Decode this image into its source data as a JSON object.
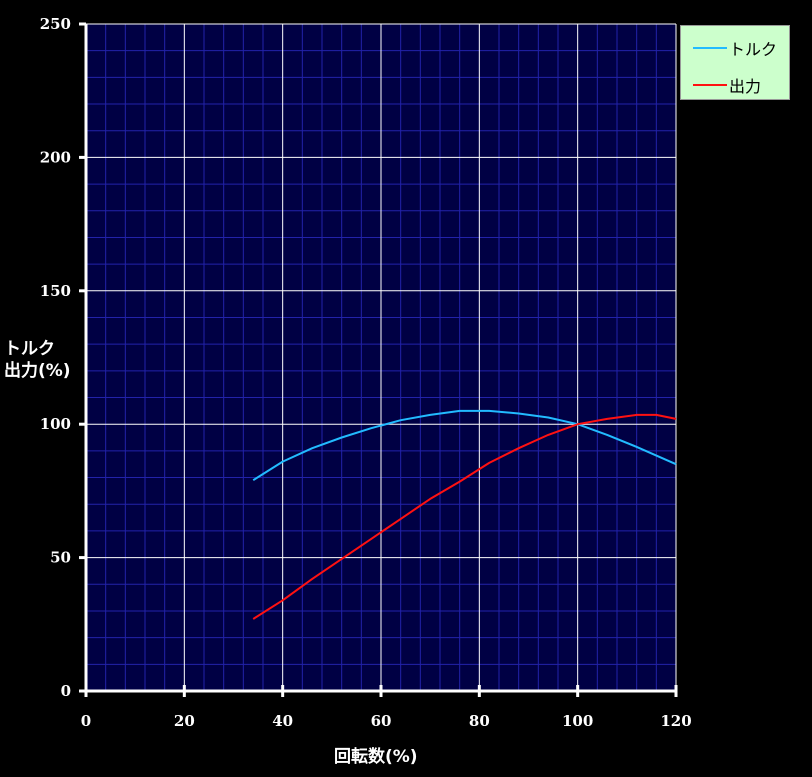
{
  "colors": {
    "background": "#000000",
    "plot_background": "#000044",
    "minor_grid": "#2222aa",
    "major_grid": "#ffffff",
    "axis": "#ffffff",
    "legend_background": "#ccffcc"
  },
  "chart_data": {
    "type": "line",
    "title": "",
    "xlabel": "回転数(%)",
    "ylabel_lines": [
      "トルク",
      "出力(%)"
    ],
    "xlim": [
      0,
      120
    ],
    "ylim": [
      0,
      250
    ],
    "xticks": [
      0,
      20,
      40,
      60,
      80,
      100,
      120
    ],
    "yticks": [
      0,
      50,
      100,
      150,
      200,
      250
    ],
    "minor_x_step": 4,
    "minor_y_step": 10,
    "grid": true,
    "legend_position": "top-right",
    "series": [
      {
        "name": "トルク",
        "color": "#22bbff",
        "x": [
          34,
          40,
          46,
          52,
          58,
          64,
          70,
          76,
          82,
          88,
          94,
          100,
          106,
          112,
          120
        ],
        "y": [
          79,
          86,
          91,
          95,
          98.5,
          101.5,
          103.5,
          105,
          105,
          104,
          102.5,
          100,
          96,
          91.5,
          85
        ]
      },
      {
        "name": "出力",
        "color": "#ff1111",
        "x": [
          34,
          40,
          46,
          52,
          58,
          64,
          70,
          76,
          82,
          88,
          94,
          100,
          106,
          112,
          116,
          120
        ],
        "y": [
          27,
          34,
          42,
          49.5,
          57,
          64.5,
          72,
          78.5,
          85.5,
          91,
          96,
          100,
          102,
          103.5,
          103.5,
          102
        ]
      }
    ]
  }
}
